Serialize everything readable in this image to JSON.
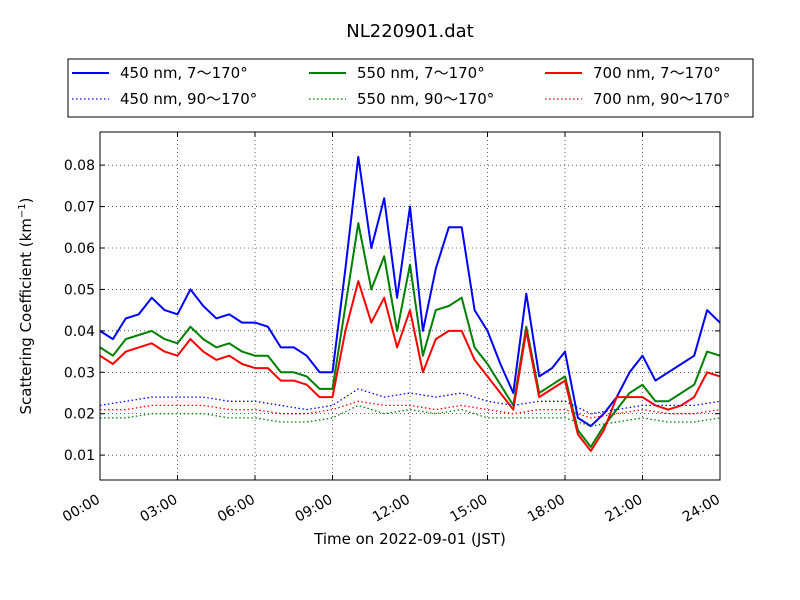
{
  "chart_data": {
    "type": "line",
    "title": "NL220901.dat",
    "xlabel": "Time on 2022-09-01 (JST)",
    "ylabel": {
      "prefix": "Scattering Coefficient (km",
      "sup": "−1",
      "suffix": ")"
    },
    "xlim": [
      0,
      24
    ],
    "ylim": [
      0.004,
      0.088
    ],
    "x_ticks": [
      0,
      3,
      6,
      9,
      12,
      15,
      18,
      21,
      24
    ],
    "x_tick_labels": [
      "00:00",
      "03:00",
      "06:00",
      "09:00",
      "12:00",
      "15:00",
      "18:00",
      "21:00",
      "24:00"
    ],
    "y_ticks": [
      0.01,
      0.02,
      0.03,
      0.04,
      0.05,
      0.06,
      0.07,
      0.08
    ],
    "y_tick_labels": [
      "0.01",
      "0.02",
      "0.03",
      "0.04",
      "0.05",
      "0.06",
      "0.07",
      "0.08"
    ],
    "grid": true,
    "legend_position": "top, above plot, 3 columns",
    "series": [
      {
        "name": "450 nm, 7～170°",
        "color": "#0000ff",
        "style": "solid",
        "x": [
          0,
          0.5,
          1,
          1.5,
          2,
          2.5,
          3,
          3.5,
          4,
          4.5,
          5,
          5.5,
          6,
          6.5,
          7,
          7.5,
          8,
          8.5,
          9,
          9.5,
          10,
          10.5,
          11,
          11.5,
          12,
          12.5,
          13,
          13.5,
          14,
          14.5,
          15,
          15.5,
          16,
          16.5,
          17,
          17.5,
          18,
          18.5,
          19,
          19.5,
          20,
          20.5,
          21,
          21.5,
          22,
          22.5,
          23,
          23.5,
          24
        ],
        "y": [
          0.04,
          0.038,
          0.043,
          0.044,
          0.048,
          0.045,
          0.044,
          0.05,
          0.046,
          0.043,
          0.044,
          0.042,
          0.042,
          0.041,
          0.036,
          0.036,
          0.034,
          0.03,
          0.03,
          0.055,
          0.082,
          0.06,
          0.072,
          0.048,
          0.07,
          0.04,
          0.055,
          0.065,
          0.065,
          0.045,
          0.04,
          0.032,
          0.025,
          0.049,
          0.029,
          0.031,
          0.035,
          0.019,
          0.017,
          0.02,
          0.024,
          0.03,
          0.034,
          0.028,
          0.03,
          0.032,
          0.034,
          0.045,
          0.042
        ]
      },
      {
        "name": "550 nm, 7～170°",
        "color": "#008000",
        "style": "solid",
        "x": [
          0,
          0.5,
          1,
          1.5,
          2,
          2.5,
          3,
          3.5,
          4,
          4.5,
          5,
          5.5,
          6,
          6.5,
          7,
          7.5,
          8,
          8.5,
          9,
          9.5,
          10,
          10.5,
          11,
          11.5,
          12,
          12.5,
          13,
          13.5,
          14,
          14.5,
          15,
          15.5,
          16,
          16.5,
          17,
          17.5,
          18,
          18.5,
          19,
          19.5,
          20,
          20.5,
          21,
          21.5,
          22,
          22.5,
          23,
          23.5,
          24
        ],
        "y": [
          0.036,
          0.034,
          0.038,
          0.039,
          0.04,
          0.038,
          0.037,
          0.041,
          0.038,
          0.036,
          0.037,
          0.035,
          0.034,
          0.034,
          0.03,
          0.03,
          0.029,
          0.026,
          0.026,
          0.046,
          0.066,
          0.05,
          0.058,
          0.04,
          0.056,
          0.034,
          0.045,
          0.046,
          0.048,
          0.036,
          0.032,
          0.027,
          0.022,
          0.041,
          0.025,
          0.027,
          0.029,
          0.016,
          0.012,
          0.017,
          0.021,
          0.025,
          0.027,
          0.023,
          0.023,
          0.025,
          0.027,
          0.035,
          0.034
        ]
      },
      {
        "name": "700 nm, 7～170°",
        "color": "#ff0000",
        "style": "solid",
        "x": [
          0,
          0.5,
          1,
          1.5,
          2,
          2.5,
          3,
          3.5,
          4,
          4.5,
          5,
          5.5,
          6,
          6.5,
          7,
          7.5,
          8,
          8.5,
          9,
          9.5,
          10,
          10.5,
          11,
          11.5,
          12,
          12.5,
          13,
          13.5,
          14,
          14.5,
          15,
          15.5,
          16,
          16.5,
          17,
          17.5,
          18,
          18.5,
          19,
          19.5,
          20,
          20.5,
          21,
          21.5,
          22,
          22.5,
          23,
          23.5,
          24
        ],
        "y": [
          0.034,
          0.032,
          0.035,
          0.036,
          0.037,
          0.035,
          0.034,
          0.038,
          0.035,
          0.033,
          0.034,
          0.032,
          0.031,
          0.031,
          0.028,
          0.028,
          0.027,
          0.024,
          0.024,
          0.04,
          0.052,
          0.042,
          0.048,
          0.036,
          0.045,
          0.03,
          0.038,
          0.04,
          0.04,
          0.033,
          0.029,
          0.025,
          0.021,
          0.04,
          0.024,
          0.026,
          0.028,
          0.015,
          0.011,
          0.016,
          0.024,
          0.024,
          0.024,
          0.022,
          0.021,
          0.022,
          0.024,
          0.03,
          0.029
        ]
      },
      {
        "name": "450 nm, 90～170°",
        "color": "#0000ff",
        "style": "dotted",
        "x": [
          0,
          1,
          2,
          3,
          4,
          5,
          6,
          7,
          8,
          9,
          10,
          11,
          12,
          13,
          14,
          15,
          16,
          17,
          18,
          19,
          20,
          21,
          22,
          23,
          24
        ],
        "y": [
          0.022,
          0.023,
          0.024,
          0.024,
          0.024,
          0.023,
          0.023,
          0.022,
          0.021,
          0.022,
          0.026,
          0.024,
          0.025,
          0.024,
          0.025,
          0.023,
          0.022,
          0.023,
          0.023,
          0.02,
          0.021,
          0.022,
          0.022,
          0.022,
          0.023
        ]
      },
      {
        "name": "550 nm, 90～170°",
        "color": "#008000",
        "style": "dotted",
        "x": [
          0,
          1,
          2,
          3,
          4,
          5,
          6,
          7,
          8,
          9,
          10,
          11,
          12,
          13,
          14,
          15,
          16,
          17,
          18,
          19,
          20,
          21,
          22,
          23,
          24
        ],
        "y": [
          0.019,
          0.019,
          0.02,
          0.02,
          0.02,
          0.019,
          0.019,
          0.018,
          0.018,
          0.019,
          0.022,
          0.02,
          0.021,
          0.02,
          0.021,
          0.019,
          0.019,
          0.019,
          0.019,
          0.017,
          0.018,
          0.019,
          0.018,
          0.018,
          0.019
        ]
      },
      {
        "name": "700 nm, 90～170°",
        "color": "#ff0000",
        "style": "dotted",
        "x": [
          0,
          1,
          2,
          3,
          4,
          5,
          6,
          7,
          8,
          9,
          10,
          11,
          12,
          13,
          14,
          15,
          16,
          17,
          18,
          19,
          20,
          21,
          22,
          23,
          24
        ],
        "y": [
          0.021,
          0.021,
          0.022,
          0.022,
          0.022,
          0.021,
          0.021,
          0.02,
          0.02,
          0.021,
          0.023,
          0.022,
          0.022,
          0.021,
          0.022,
          0.021,
          0.02,
          0.021,
          0.021,
          0.019,
          0.02,
          0.021,
          0.02,
          0.02,
          0.021
        ]
      }
    ]
  }
}
